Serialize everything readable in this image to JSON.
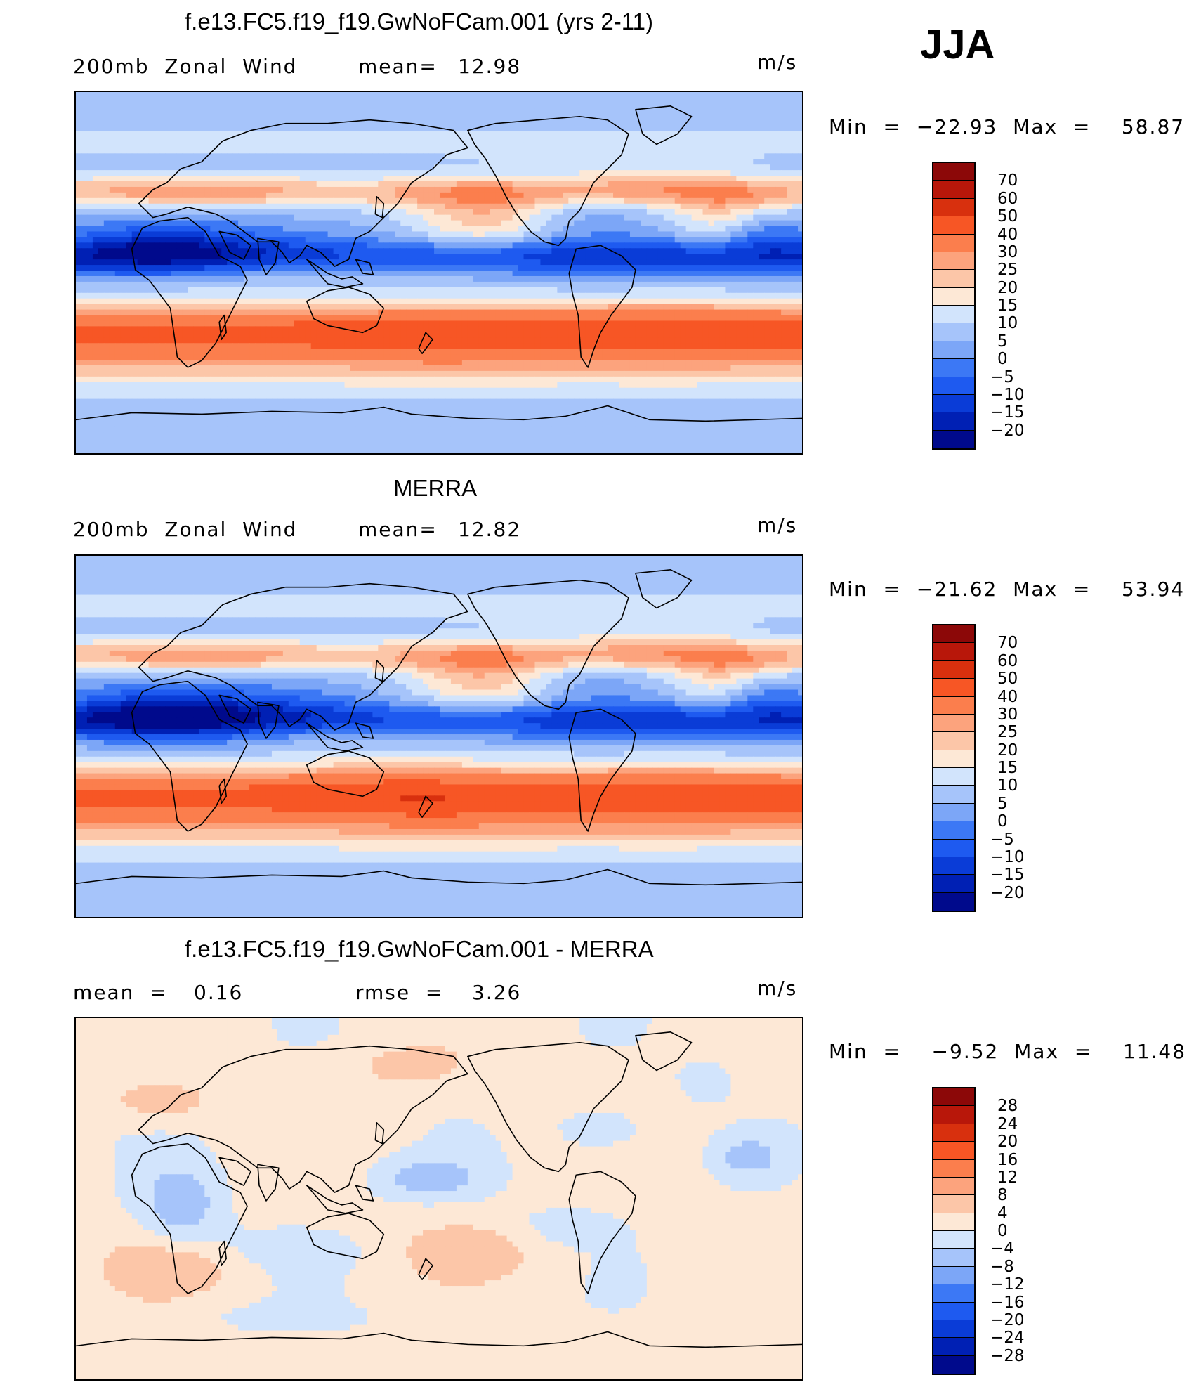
{
  "season": "JJA",
  "units": "m/s",
  "colors": {
    "scale": [
      "#000a8c",
      "#0020b4",
      "#0a3cd7",
      "#1e5af0",
      "#3c78f5",
      "#7ca6f7",
      "#a6c4fa",
      "#d2e4fc",
      "#fde8d6",
      "#fcc6a8",
      "#fca37d",
      "#fb7e4d",
      "#f75625",
      "#d8300e",
      "#b8170a",
      "#8c0808"
    ]
  },
  "panels": [
    {
      "title": "f.e13.FC5.f19_f19.GwNoFCam.001 (yrs 2-11)",
      "left_label": "200mb  Zonal  Wind",
      "stat1_label": "mean=",
      "stat1_value": "12.98",
      "stat2_label": "",
      "stat2_value": "",
      "units": "m/s",
      "minmax": "Min  =  −22.93  Max  =    58.87",
      "colorbar_ticks": [
        "70",
        "60",
        "50",
        "40",
        "30",
        "25",
        "20",
        "15",
        "10",
        "5",
        "0",
        "−5",
        "−10",
        "−15",
        "−20"
      ],
      "field": "model"
    },
    {
      "title": "MERRA",
      "left_label": "200mb  Zonal  Wind",
      "stat1_label": "mean=",
      "stat1_value": "12.82",
      "stat2_label": "",
      "stat2_value": "",
      "units": "m/s",
      "minmax": "Min  =  −21.62  Max  =    53.94",
      "colorbar_ticks": [
        "70",
        "60",
        "50",
        "40",
        "30",
        "25",
        "20",
        "15",
        "10",
        "5",
        "0",
        "−5",
        "−10",
        "−15",
        "−20"
      ],
      "field": "obs"
    },
    {
      "title": "f.e13.FC5.f19_f19.GwNoFCam.001 - MERRA",
      "left_label": "mean  =",
      "stat1_label": "0.16",
      "stat1_value": "",
      "stat2_label": "rmse  =",
      "stat2_value": "3.26",
      "units": "m/s",
      "minmax": "Min  =    −9.52  Max  =    11.48",
      "colorbar_ticks": [
        "28",
        "24",
        "20",
        "16",
        "12",
        "8",
        "4",
        "0",
        "−4",
        "−8",
        "−12",
        "−16",
        "−20",
        "−24",
        "−28"
      ],
      "field": "diff"
    }
  ]
}
